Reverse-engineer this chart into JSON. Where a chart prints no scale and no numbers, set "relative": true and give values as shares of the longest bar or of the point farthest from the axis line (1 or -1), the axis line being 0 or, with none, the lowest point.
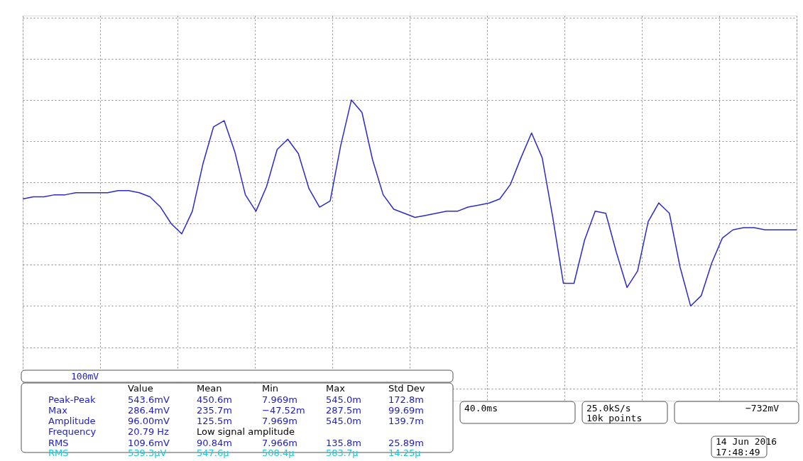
{
  "chart_data": {
    "type": "line",
    "relative": true,
    "color": "#2b2bc8",
    "categories": [
      null,
      null,
      null,
      null,
      null,
      null,
      null,
      null,
      null,
      null,
      null,
      null,
      null,
      null,
      null,
      null,
      null,
      null,
      null,
      null,
      null,
      null,
      null,
      null,
      null,
      null,
      null,
      null,
      null,
      null,
      null,
      null,
      null,
      null,
      null,
      null,
      null,
      null,
      null,
      null,
      null,
      null,
      null,
      null,
      null,
      null,
      null,
      null,
      null,
      null,
      null,
      null,
      null,
      null,
      null,
      null,
      null,
      null,
      null,
      null,
      null,
      null,
      null,
      null,
      null,
      null,
      null,
      null,
      null,
      null,
      null,
      null,
      null,
      null
    ],
    "values": [
      0.52,
      0.53,
      0.53,
      0.54,
      0.54,
      0.55,
      0.55,
      0.55,
      0.55,
      0.56,
      0.56,
      0.55,
      0.53,
      0.48,
      0.4,
      0.35,
      0.46,
      0.69,
      0.87,
      0.9,
      0.75,
      0.54,
      0.46,
      0.58,
      0.76,
      0.81,
      0.74,
      0.57,
      0.48,
      0.51,
      0.78,
      1.0,
      0.94,
      0.71,
      0.54,
      0.47,
      0.45,
      0.43,
      0.44,
      0.45,
      0.46,
      0.46,
      0.48,
      0.49,
      0.5,
      0.52,
      0.59,
      0.72,
      0.84,
      0.72,
      0.43,
      0.11,
      0.11,
      0.32,
      0.46,
      0.45,
      0.26,
      0.09,
      0.17,
      0.41,
      0.5,
      0.45,
      0.19,
      0.0,
      0.05,
      0.21,
      0.33,
      0.37,
      0.38,
      0.38,
      0.37,
      0.37,
      0.37,
      0.37
    ],
    "grid": true,
    "marker": "none",
    "line_style": "solid",
    "annotations": [
      "100mV",
      "40.0ms",
      "25.0kS/s",
      "10k points",
      "−732mV",
      "14 Jun 2016",
      "17:48:49",
      "Value",
      "Mean",
      "Min",
      "Max",
      "Std Dev",
      "Peak-Peak",
      "543.6mV",
      "450.6m",
      "7.969m",
      "545.0m",
      "172.8m",
      "Max",
      "286.4mV",
      "235.7m",
      "−47.52m",
      "287.5m",
      "99.69m",
      "Amplitude",
      "96.00mV",
      "125.5m",
      "7.969m",
      "545.0m",
      "139.7m",
      "Frequency",
      "20.79 Hz",
      "Low signal amplitude",
      "RMS",
      "109.6mV",
      "90.84m",
      "7.966m",
      "135.8m",
      "25.89m",
      "RMS",
      "539.3µV",
      "547.6µ",
      "508.4µ",
      "583.7µ",
      "14.25µ"
    ]
  }
}
